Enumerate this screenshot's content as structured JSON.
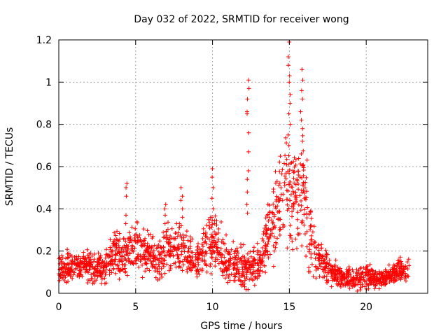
{
  "chart_data": {
    "type": "scatter",
    "title": "Day 032 of 2022, SRMTID for receiver wong",
    "xlabel": "GPS time / hours",
    "ylabel": "SRMTID / TECUs",
    "xlim": [
      0,
      24
    ],
    "ylim": [
      0,
      1.2
    ],
    "xticks": [
      0,
      5,
      10,
      15,
      20
    ],
    "xtick_labels": [
      "0",
      "5",
      "10",
      "15",
      "20"
    ],
    "yticks": [
      0,
      0.2,
      0.4,
      0.6,
      0.8,
      1,
      1.2
    ],
    "ytick_labels": [
      "0",
      "0.2",
      "0.4",
      "0.6",
      "0.8",
      "1",
      "1.2"
    ],
    "grid": true,
    "marker": "+",
    "series": [
      {
        "name": "SRMTID",
        "color": "#ff0000",
        "profile": [
          {
            "x": 0.0,
            "base": 0.12,
            "spread": 0.05
          },
          {
            "x": 1.5,
            "base": 0.13,
            "spread": 0.05
          },
          {
            "x": 3.0,
            "base": 0.12,
            "spread": 0.05
          },
          {
            "x": 3.5,
            "base": 0.18,
            "spread": 0.07
          },
          {
            "x": 4.5,
            "base": 0.18,
            "spread": 0.08
          },
          {
            "x": 5.0,
            "base": 0.22,
            "spread": 0.08
          },
          {
            "x": 6.5,
            "base": 0.15,
            "spread": 0.06
          },
          {
            "x": 7.0,
            "base": 0.22,
            "spread": 0.08
          },
          {
            "x": 8.0,
            "base": 0.2,
            "spread": 0.08
          },
          {
            "x": 9.0,
            "base": 0.15,
            "spread": 0.06
          },
          {
            "x": 10.0,
            "base": 0.25,
            "spread": 0.1
          },
          {
            "x": 11.0,
            "base": 0.14,
            "spread": 0.07
          },
          {
            "x": 12.0,
            "base": 0.12,
            "spread": 0.06
          },
          {
            "x": 13.0,
            "base": 0.14,
            "spread": 0.06
          },
          {
            "x": 14.0,
            "base": 0.35,
            "spread": 0.12
          },
          {
            "x": 15.0,
            "base": 0.5,
            "spread": 0.2
          },
          {
            "x": 16.0,
            "base": 0.45,
            "spread": 0.2
          },
          {
            "x": 16.5,
            "base": 0.2,
            "spread": 0.08
          },
          {
            "x": 17.5,
            "base": 0.12,
            "spread": 0.05
          },
          {
            "x": 18.5,
            "base": 0.07,
            "spread": 0.03
          },
          {
            "x": 20.0,
            "base": 0.08,
            "spread": 0.04
          },
          {
            "x": 21.0,
            "base": 0.07,
            "spread": 0.03
          },
          {
            "x": 22.0,
            "base": 0.1,
            "spread": 0.04
          },
          {
            "x": 22.8,
            "base": 0.11,
            "spread": 0.04
          }
        ],
        "spikes": [
          {
            "x": 4.4,
            "values": [
              0.52,
              0.5,
              0.46,
              0.37,
              0.33
            ]
          },
          {
            "x": 6.9,
            "values": [
              0.42,
              0.4,
              0.37,
              0.33
            ]
          },
          {
            "x": 8.0,
            "values": [
              0.5,
              0.46,
              0.44,
              0.4,
              0.36,
              0.32
            ]
          },
          {
            "x": 10.0,
            "values": [
              0.59,
              0.55,
              0.5,
              0.45,
              0.4,
              0.36
            ]
          },
          {
            "x": 12.3,
            "values": [
              1.01,
              0.97,
              0.92,
              0.86,
              0.85,
              0.76,
              0.67,
              0.58,
              0.54,
              0.48,
              0.42,
              0.38
            ]
          },
          {
            "x": 15.0,
            "values": [
              1.19,
              1.12,
              1.08,
              1.03,
              1.0,
              0.94,
              0.9,
              0.85,
              0.8,
              0.75,
              0.7
            ]
          },
          {
            "x": 15.8,
            "values": [
              1.06,
              1.01,
              0.96,
              0.92,
              0.86,
              0.82,
              0.78,
              0.72,
              0.66
            ]
          }
        ],
        "x_range": [
          0,
          22.8
        ],
        "n_points": 1900
      }
    ]
  }
}
